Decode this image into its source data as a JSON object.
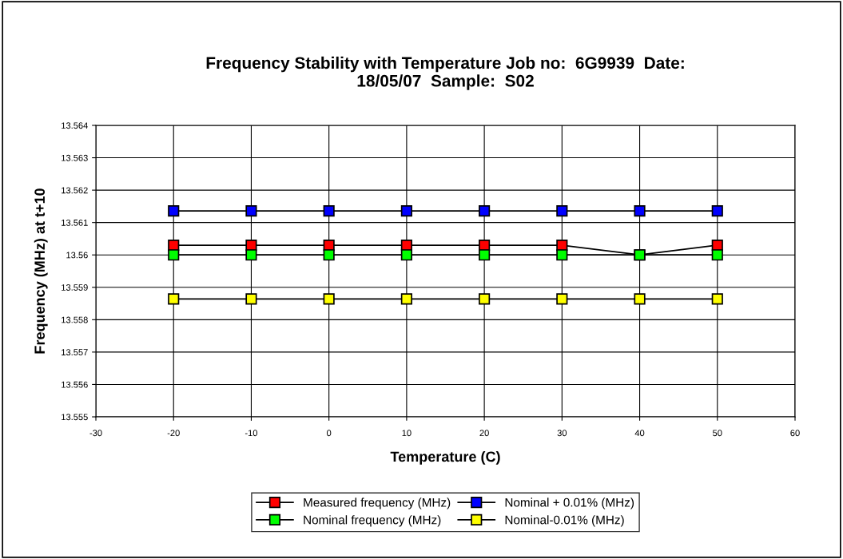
{
  "chart_data": {
    "type": "line",
    "title": "Frequency Stability with Temperature Job no:  6G9939  Date:\n18/05/07  Sample:  S02",
    "xlabel": "Temperature (C)",
    "ylabel": "Frequency (MHz) at t+10",
    "x": [
      -20,
      -10,
      0,
      10,
      20,
      30,
      40,
      50
    ],
    "series": [
      {
        "name": "Measured frequency (MHz)",
        "color": "#ff0000",
        "values": [
          13.5603,
          13.5603,
          13.5603,
          13.5603,
          13.5603,
          13.5603,
          13.56,
          13.5603
        ]
      },
      {
        "name": "Nominal frequency (MHz)",
        "color": "#00ff00",
        "values": [
          13.56,
          13.56,
          13.56,
          13.56,
          13.56,
          13.56,
          13.56,
          13.56
        ]
      },
      {
        "name": "Nominal + 0.01% (MHz)",
        "color": "#0000ff",
        "values": [
          13.56136,
          13.56136,
          13.56136,
          13.56136,
          13.56136,
          13.56136,
          13.56136,
          13.56136
        ]
      },
      {
        "name": "Nominal-0.01% (MHz)",
        "color": "#ffff00",
        "values": [
          13.55864,
          13.55864,
          13.55864,
          13.55864,
          13.55864,
          13.55864,
          13.55864,
          13.55864
        ]
      }
    ],
    "xlim": [
      -30,
      60
    ],
    "xticks": [
      -30,
      -20,
      -10,
      0,
      10,
      20,
      30,
      40,
      50,
      60
    ],
    "ylim": [
      13.555,
      13.564
    ],
    "yticks": [
      13.555,
      13.556,
      13.557,
      13.558,
      13.559,
      13.56,
      13.561,
      13.562,
      13.563,
      13.564
    ],
    "grid": true,
    "legend": "bottom",
    "marker": "square",
    "line_style": "solid"
  }
}
